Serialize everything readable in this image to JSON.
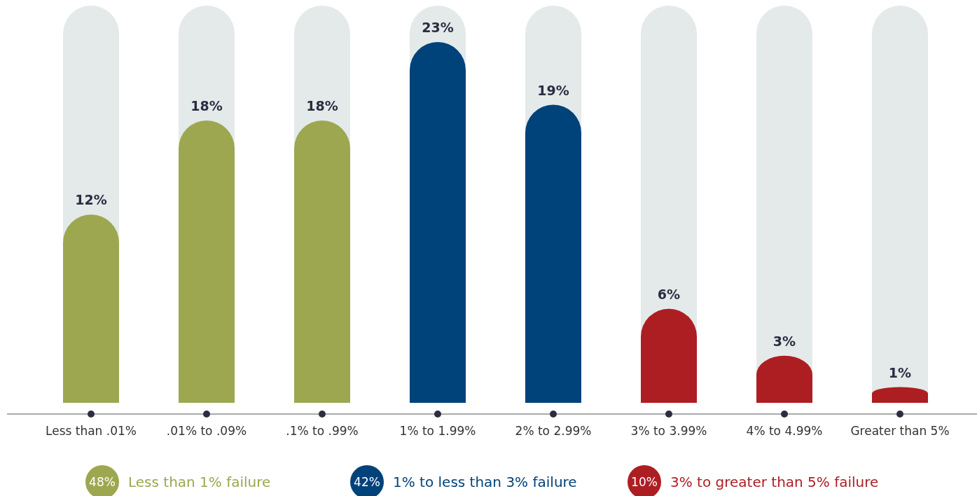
{
  "chart_data": {
    "type": "bar",
    "legend": "bottom",
    "categories": [
      "Less than .01%",
      ".01% to .09%",
      ".1% to .99%",
      "1% to 1.99%",
      "2% to 2.99%",
      "3% to 3.99%",
      "4% to 4.99%",
      "Greater than 5%"
    ],
    "series": [
      {
        "name": "Less than 1% failure",
        "color": "#9ca750",
        "values": [
          12,
          18,
          18,
          null,
          null,
          null,
          null,
          null
        ],
        "value_labels": [
          "12%",
          "18%",
          "18%",
          null,
          null,
          null,
          null,
          null
        ]
      },
      {
        "name": "1% to less than 3% failure",
        "color": "#00427a",
        "values": [
          null,
          null,
          null,
          23,
          19,
          null,
          null,
          null
        ],
        "value_labels": [
          null,
          null,
          null,
          "23%",
          "19%",
          null,
          null,
          null
        ]
      },
      {
        "name": "3% to greater than 5% failure",
        "color": "#ad1e23",
        "values": [
          null,
          null,
          null,
          null,
          null,
          6,
          3,
          1
        ],
        "value_labels": [
          null,
          null,
          null,
          null,
          null,
          "6%",
          "3%",
          "1%"
        ]
      }
    ],
    "annotations": [
      "48%",
      "42%",
      "10%"
    ]
  }
}
